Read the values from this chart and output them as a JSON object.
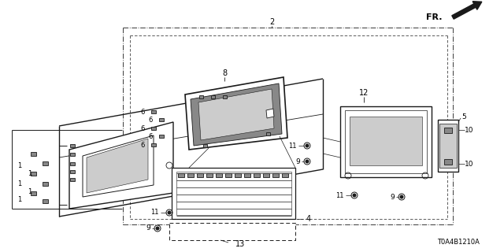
{
  "bg_color": "#ffffff",
  "line_color": "#1a1a1a",
  "diagram_code": "T0A4B1210A",
  "gray_light": "#cccccc",
  "gray_mid": "#aaaaaa",
  "gray_dark": "#888888"
}
